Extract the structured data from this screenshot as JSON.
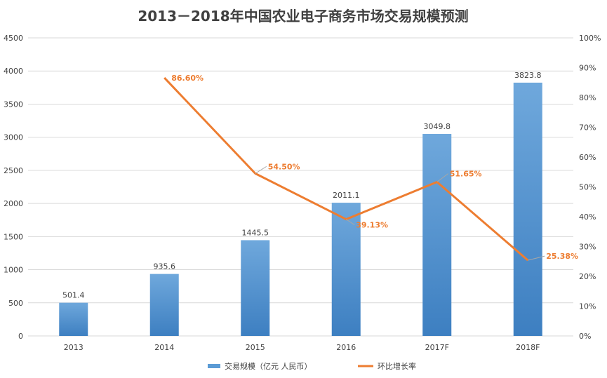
{
  "chart_data": {
    "type": "bar",
    "title": "2013－2018年中国农业电子商务市场交易规模预测",
    "categories": [
      "2013",
      "2014",
      "2015",
      "2016",
      "2017F",
      "2018F"
    ],
    "series": [
      {
        "name": "交易规模（亿元 人民币）",
        "type": "bar",
        "axis": "left",
        "color": "#5B9BD5",
        "values": [
          501.4,
          935.6,
          1445.5,
          2011.1,
          3049.8,
          3823.8
        ],
        "labels": [
          "501.4",
          "935.6",
          "1445.5",
          "2011.1",
          "3049.8",
          "3823.8"
        ]
      },
      {
        "name": "环比增长率",
        "type": "line",
        "axis": "right",
        "color": "#ED7D31",
        "values": [
          null,
          86.6,
          54.5,
          39.13,
          51.65,
          25.38
        ],
        "labels": [
          "",
          "86.60%",
          "54.50%",
          "39.13%",
          "51.65%",
          "25.38%"
        ]
      }
    ],
    "y_left": {
      "min": 0,
      "max": 4500,
      "ticks": [
        "0",
        "500",
        "1000",
        "1500",
        "2000",
        "2500",
        "3000",
        "3500",
        "4000",
        "4500"
      ]
    },
    "y_right": {
      "min": 0,
      "max": 100,
      "ticks": [
        "0%",
        "10%",
        "20%",
        "30%",
        "40%",
        "50%",
        "60%",
        "70%",
        "80%",
        "90%",
        "100%"
      ]
    },
    "grid": true,
    "legend": "bottom"
  }
}
